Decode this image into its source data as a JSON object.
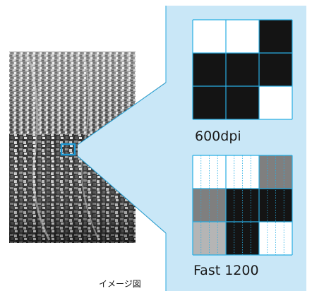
{
  "caption": "イメージ図",
  "grids": [
    {
      "label": "600dpi",
      "cells": [
        [
          "white",
          "white",
          "black"
        ],
        [
          "black",
          "black",
          "black"
        ],
        [
          "black",
          "black",
          "white"
        ]
      ]
    },
    {
      "label": "Fast 1200",
      "cells": [
        [
          "white",
          "white",
          "gray"
        ],
        [
          "gray",
          "black",
          "black"
        ],
        [
          "light-gray",
          "black",
          "white"
        ]
      ]
    }
  ],
  "colors": {
    "panel": "#c9e7f7",
    "panel_border": "#2aa7dc",
    "grid_line": "#29aee3",
    "highlight_box": "#1e9ad6",
    "black": "#141414",
    "gray": "#7f7f7f",
    "light_gray": "#b5b5b5",
    "white": "#ffffff"
  }
}
